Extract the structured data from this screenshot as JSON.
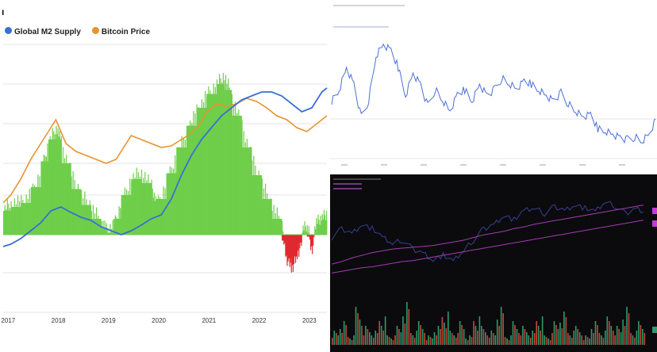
{
  "corner_glyph": "ı",
  "legend": {
    "m2_label": "Global M2 Supply",
    "btc_label": "Bitcoin Price",
    "m2_color": "#3b6fd6",
    "btc_color": "#e8932f"
  },
  "chart_data": [
    {
      "type": "area",
      "title": "",
      "x_ticks": [
        "2017",
        "2018",
        "2019",
        "2020",
        "2021",
        "2022",
        "2023"
      ],
      "x_range": [
        2016.95,
        2023.4
      ],
      "series": [
        {
          "name": "Global M2 Supply",
          "color": "#3b6fd6",
          "x": [
            2016.95,
            2017.1,
            2017.3,
            2017.5,
            2017.7,
            2017.9,
            2018.1,
            2018.3,
            2018.5,
            2018.7,
            2018.9,
            2019.1,
            2019.3,
            2019.5,
            2019.7,
            2019.9,
            2020.1,
            2020.3,
            2020.5,
            2020.7,
            2020.9,
            2021.1,
            2021.3,
            2021.5,
            2021.7,
            2021.9,
            2022.1,
            2022.3,
            2022.5,
            2022.7,
            2022.9,
            2023.1,
            2023.3,
            2023.4
          ],
          "values": [
            -0.15,
            -0.12,
            -0.05,
            0.05,
            0.15,
            0.3,
            0.35,
            0.28,
            0.22,
            0.18,
            0.1,
            0.05,
            0.0,
            0.05,
            0.12,
            0.2,
            0.25,
            0.45,
            0.75,
            1.0,
            1.2,
            1.35,
            1.5,
            1.6,
            1.7,
            1.75,
            1.8,
            1.8,
            1.75,
            1.65,
            1.55,
            1.6,
            1.8,
            1.85
          ]
        },
        {
          "name": "Bitcoin Price",
          "color": "#e8932f",
          "x": [
            2016.95,
            2017.1,
            2017.3,
            2017.5,
            2017.7,
            2017.9,
            2018.0,
            2018.2,
            2018.4,
            2018.6,
            2018.8,
            2019.0,
            2019.2,
            2019.4,
            2019.5,
            2019.7,
            2019.9,
            2020.1,
            2020.3,
            2020.5,
            2020.7,
            2020.9,
            2021.0,
            2021.2,
            2021.4,
            2021.6,
            2021.8,
            2022.0,
            2022.2,
            2022.4,
            2022.6,
            2022.8,
            2023.0,
            2023.2,
            2023.4
          ],
          "values": [
            0.4,
            0.5,
            0.7,
            0.95,
            1.15,
            1.35,
            1.45,
            1.15,
            1.05,
            1.0,
            0.95,
            0.9,
            0.95,
            1.15,
            1.25,
            1.2,
            1.15,
            1.1,
            1.12,
            1.2,
            1.28,
            1.42,
            1.55,
            1.65,
            1.62,
            1.65,
            1.72,
            1.68,
            1.6,
            1.5,
            1.45,
            1.35,
            1.3,
            1.4,
            1.5
          ]
        },
        {
          "name": "",
          "color_positive": "#6fce4a",
          "color_negative": "#e0292e",
          "x": [
            2016.95,
            2017.1,
            2017.3,
            2017.5,
            2017.7,
            2017.85,
            2018.0,
            2018.1,
            2018.3,
            2018.5,
            2018.7,
            2018.9,
            2019.0,
            2019.15,
            2019.3,
            2019.5,
            2019.7,
            2019.9,
            2020.0,
            2020.2,
            2020.4,
            2020.6,
            2020.8,
            2021.0,
            2021.2,
            2021.35,
            2021.5,
            2021.7,
            2021.9,
            2022.1,
            2022.3,
            2022.5,
            2022.6,
            2022.7,
            2022.8,
            2022.9,
            2023.0,
            2023.1,
            2023.2,
            2023.3,
            2023.4
          ],
          "values": [
            0.25,
            0.35,
            0.35,
            0.45,
            0.75,
            1.1,
            1.3,
            1.1,
            0.7,
            0.45,
            0.3,
            0.1,
            0.0,
            0.05,
            0.35,
            0.65,
            0.75,
            0.55,
            0.3,
            0.6,
            0.95,
            1.25,
            1.5,
            1.7,
            1.85,
            1.95,
            1.7,
            1.3,
            0.9,
            0.6,
            0.3,
            0.1,
            -0.25,
            -0.35,
            -0.2,
            0.0,
            0.05,
            -0.1,
            0.1,
            0.15,
            0.2
          ]
        }
      ]
    },
    {
      "type": "line",
      "title": "",
      "color": "#4e6fd8",
      "values": [
        0.45,
        0.55,
        0.75,
        0.6,
        0.3,
        0.45,
        0.85,
        0.95,
        0.9,
        0.75,
        0.5,
        0.7,
        0.6,
        0.4,
        0.55,
        0.45,
        0.35,
        0.5,
        0.55,
        0.45,
        0.6,
        0.5,
        0.55,
        0.65,
        0.6,
        0.55,
        0.62,
        0.6,
        0.55,
        0.5,
        0.45,
        0.52,
        0.42,
        0.35,
        0.3,
        0.32,
        0.2,
        0.18,
        0.15,
        0.12,
        0.1,
        0.12,
        0.08,
        0.15,
        0.3
      ]
    },
    {
      "type": "line",
      "title": "",
      "background": "#0b0b0d",
      "price_color": "#3a3f8f",
      "ma_color": "#a43bb5",
      "price": [
        0.45,
        0.55,
        0.5,
        0.6,
        0.55,
        0.45,
        0.38,
        0.42,
        0.32,
        0.28,
        0.2,
        0.25,
        0.18,
        0.3,
        0.42,
        0.55,
        0.6,
        0.7,
        0.65,
        0.75,
        0.78,
        0.72,
        0.8,
        0.76,
        0.82,
        0.78,
        0.74,
        0.85,
        0.8,
        0.72,
        0.78,
        0.74
      ],
      "ma_fast": [
        0.15,
        0.18,
        0.22,
        0.25,
        0.28,
        0.3,
        0.32,
        0.33,
        0.34,
        0.35,
        0.36,
        0.38,
        0.4,
        0.42,
        0.45,
        0.48,
        0.5,
        0.52,
        0.55,
        0.57,
        0.6,
        0.62,
        0.64,
        0.66,
        0.68,
        0.7,
        0.72,
        0.74,
        0.76,
        0.78,
        0.8,
        0.82
      ],
      "ma_slow": [
        0.05,
        0.07,
        0.09,
        0.11,
        0.12,
        0.14,
        0.16,
        0.18,
        0.19,
        0.21,
        0.23,
        0.25,
        0.27,
        0.29,
        0.31,
        0.33,
        0.35,
        0.37,
        0.39,
        0.41,
        0.43,
        0.45,
        0.47,
        0.49,
        0.51,
        0.53,
        0.55,
        0.57,
        0.59,
        0.61,
        0.63,
        0.65
      ],
      "volume_colors": [
        "#c04a3a",
        "#2e9a6a"
      ],
      "volume": [
        0.3,
        0.5,
        0.2,
        0.8,
        0.4,
        0.3,
        0.6,
        0.2,
        0.4,
        0.9,
        0.3,
        0.5,
        0.2,
        0.4,
        0.7,
        0.3,
        0.5,
        0.2,
        0.6,
        0.4,
        0.3,
        0.8,
        0.2,
        0.5,
        0.4,
        0.3,
        0.6,
        0.2,
        0.5,
        0.7,
        0.3,
        0.4,
        0.2,
        0.5,
        0.3,
        0.6,
        0.4,
        0.8,
        0.3,
        0.5
      ]
    }
  ]
}
